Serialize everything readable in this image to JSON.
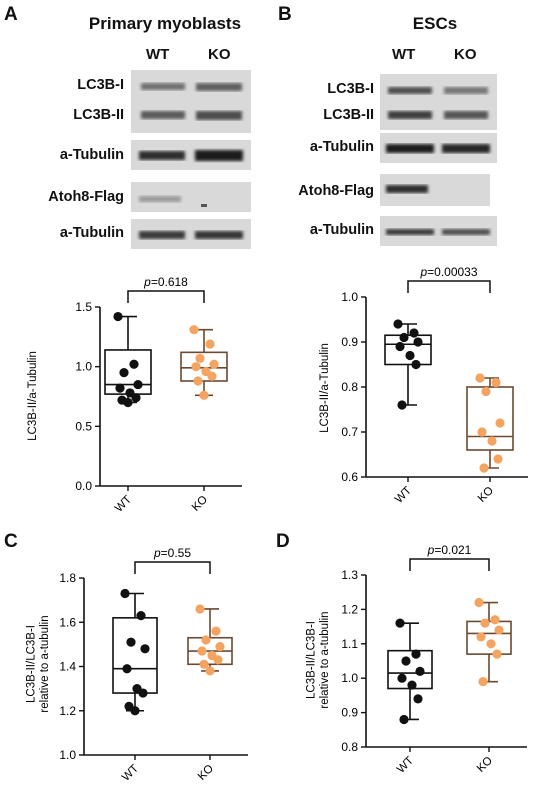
{
  "panels": {
    "A": {
      "letter": "A",
      "blot": {
        "title": "Primary myoblasts",
        "lanes": [
          "WT",
          "KO"
        ],
        "bands": [
          "LC3B-I",
          "LC3B-II",
          "a-Tubulin",
          "Atoh8-Flag",
          "a-Tubulin"
        ]
      }
    },
    "B": {
      "letter": "B",
      "blot": {
        "title": "ESCs",
        "lanes": [
          "WT",
          "KO"
        ],
        "bands": [
          "LC3B-I",
          "LC3B-II",
          "a-Tubulin",
          "Atoh8-Flag",
          "a-Tubulin"
        ]
      }
    },
    "C": {
      "letter": "C"
    },
    "D": {
      "letter": "D"
    }
  },
  "chart_data": [
    {
      "panel": "A",
      "type": "box",
      "categories": [
        "WT",
        "KO"
      ],
      "ylabel": "LC3B-II/a-Tubulin",
      "ylim": [
        0.0,
        1.5
      ],
      "yticks": [
        "0.0",
        "0.5",
        "1.0",
        "1.5"
      ],
      "p_label": "p=0.618",
      "series": [
        {
          "values": [
            1.42,
            1.02,
            0.95,
            0.85,
            0.82,
            0.78,
            0.74,
            0.72,
            0.7
          ],
          "box": {
            "min": 0.7,
            "q1": 0.77,
            "median": 0.85,
            "q3": 1.14,
            "max": 1.42
          },
          "color": "#111111"
        },
        {
          "values": [
            1.31,
            1.19,
            1.07,
            1.02,
            1.0,
            0.96,
            0.92,
            0.88,
            0.76
          ],
          "box": {
            "min": 0.76,
            "q1": 0.88,
            "median": 0.99,
            "q3": 1.12,
            "max": 1.31
          },
          "color": "#f4a460"
        }
      ]
    },
    {
      "panel": "B",
      "type": "box",
      "categories": [
        "WT",
        "KO"
      ],
      "ylabel": "LC3B-II/a-Tubulin",
      "ylim": [
        0.6,
        1.0
      ],
      "yticks": [
        "0.6",
        "0.7",
        "0.8",
        "0.9",
        "1.0"
      ],
      "p_label": "p=0.00033",
      "series": [
        {
          "values": [
            0.94,
            0.92,
            0.91,
            0.9,
            0.89,
            0.87,
            0.85,
            0.76
          ],
          "box": {
            "min": 0.76,
            "q1": 0.85,
            "median": 0.895,
            "q3": 0.915,
            "max": 0.94
          },
          "color": "#111111"
        },
        {
          "values": [
            0.82,
            0.81,
            0.79,
            0.72,
            0.7,
            0.68,
            0.64,
            0.62
          ],
          "box": {
            "min": 0.62,
            "q1": 0.66,
            "median": 0.69,
            "q3": 0.8,
            "max": 0.82
          },
          "color": "#f4a460"
        }
      ]
    },
    {
      "panel": "C",
      "type": "box",
      "categories": [
        "WT",
        "KO"
      ],
      "ylabel_lines": [
        "LC3B-II/LC3B-I",
        "relative to a-tubulin"
      ],
      "ylim": [
        1.0,
        1.8
      ],
      "yticks": [
        "1.0",
        "1.2",
        "1.4",
        "1.6",
        "1.8"
      ],
      "p_label": "p=0.55",
      "series": [
        {
          "values": [
            1.73,
            1.63,
            1.51,
            1.48,
            1.39,
            1.3,
            1.28,
            1.22,
            1.2
          ],
          "box": {
            "min": 1.2,
            "q1": 1.28,
            "median": 1.39,
            "q3": 1.62,
            "max": 1.73
          },
          "color": "#111111"
        },
        {
          "values": [
            1.66,
            1.56,
            1.52,
            1.49,
            1.47,
            1.45,
            1.43,
            1.41,
            1.38
          ],
          "box": {
            "min": 1.38,
            "q1": 1.41,
            "median": 1.47,
            "q3": 1.53,
            "max": 1.66
          },
          "color": "#f4a460"
        }
      ]
    },
    {
      "panel": "D",
      "type": "box",
      "categories": [
        "WT",
        "KO"
      ],
      "ylabel_lines": [
        "LC3B-II/LC3B-I",
        "relative to a-tubulin"
      ],
      "ylim": [
        0.8,
        1.3
      ],
      "yticks": [
        "0.8",
        "0.9",
        "1.0",
        "1.1",
        "1.2",
        "1.3"
      ],
      "p_label": "p=0.021",
      "series": [
        {
          "values": [
            1.16,
            1.07,
            1.05,
            1.02,
            1.0,
            0.98,
            0.94,
            0.88
          ],
          "box": {
            "min": 0.88,
            "q1": 0.97,
            "median": 1.015,
            "q3": 1.08,
            "max": 1.16
          },
          "color": "#111111"
        },
        {
          "values": [
            1.22,
            1.17,
            1.16,
            1.14,
            1.12,
            1.1,
            1.07,
            0.99
          ],
          "box": {
            "min": 0.99,
            "q1": 1.07,
            "median": 1.13,
            "q3": 1.165,
            "max": 1.22
          },
          "color": "#f4a460"
        }
      ]
    }
  ]
}
